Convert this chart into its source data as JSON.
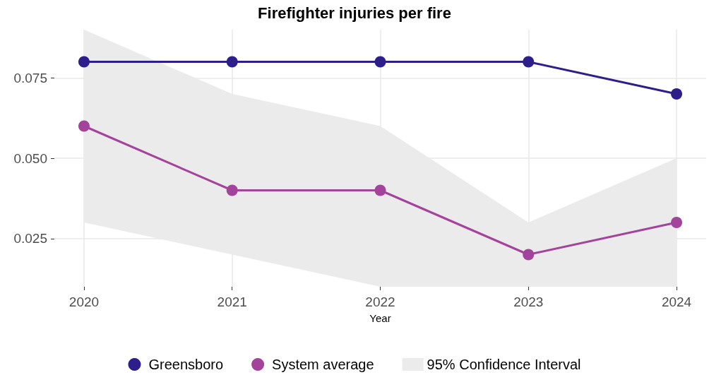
{
  "chart_data": {
    "type": "line",
    "title": "Firefighter injuries per fire",
    "xlabel": "Year",
    "x": [
      2020,
      2021,
      2022,
      2023,
      2024
    ],
    "series": [
      {
        "name": "Greensboro",
        "color": "#2d1e8c",
        "values": [
          0.08,
          0.08,
          0.08,
          0.08,
          0.07
        ]
      },
      {
        "name": "System average",
        "color": "#a4439b",
        "values": [
          0.06,
          0.04,
          0.04,
          0.02,
          0.03
        ]
      },
      {
        "name": "95% Confidence Interval",
        "type": "area",
        "color": "#ebebeb",
        "values": [
          null,
          null,
          null,
          null,
          null
        ],
        "lower": [
          0.03,
          0.02,
          0.01,
          0.01,
          0.01
        ],
        "upper": [
          0.09,
          0.07,
          0.06,
          0.03,
          0.05
        ]
      }
    ],
    "xlim": [
      2019.8,
      2024.2
    ],
    "xticks": [
      2020,
      2021,
      2022,
      2023,
      2024
    ],
    "ylim": [
      0.01,
      0.09
    ],
    "yticks": [
      0.025,
      {
        "value": 0.05,
        "label": "0.050"
      },
      0.075
    ],
    "grid": true,
    "legend": "bottom",
    "marker": "circle",
    "line_style": "solid"
  }
}
